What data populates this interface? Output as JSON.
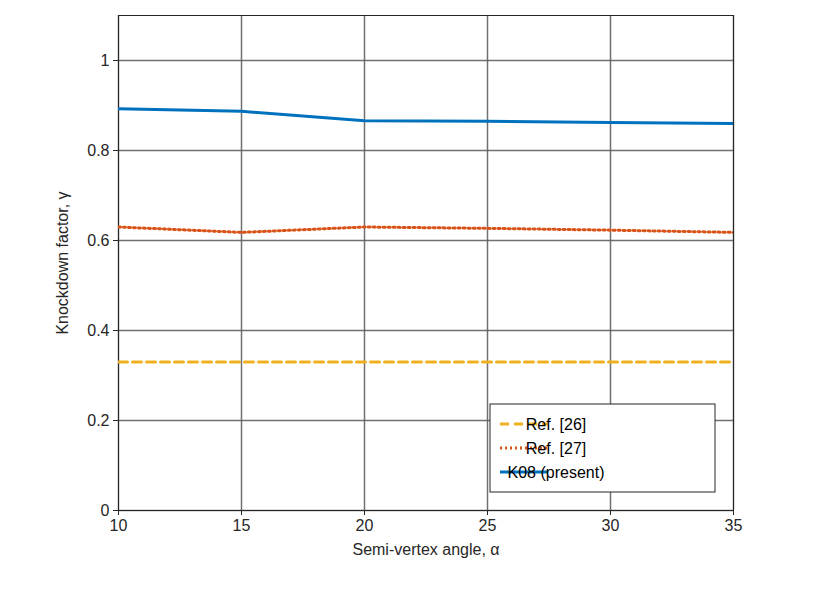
{
  "chart_data": {
    "type": "line",
    "x_label": "Semi-vertex angle, α",
    "y_label": "Knockdown factor, γ",
    "x": [
      10,
      15,
      20,
      25,
      30,
      35
    ],
    "xlim": [
      10,
      35
    ],
    "xticks": [
      10,
      15,
      20,
      25,
      30,
      35
    ],
    "ylim": [
      0,
      1.1
    ],
    "yticks": [
      0,
      0.2,
      0.4,
      0.6,
      0.8,
      1
    ],
    "grid": true,
    "legend": "lower right",
    "series": [
      {
        "name": "Ref. [26]",
        "color": "#EDB120",
        "line_style": "dashed",
        "values": [
          0.33,
          0.33,
          0.33,
          0.33,
          0.33,
          0.33
        ]
      },
      {
        "name": "Ref. [27]",
        "color": "#D95319",
        "line_style": "dotted",
        "values": [
          0.63,
          0.618,
          0.63,
          0.627,
          0.623,
          0.618
        ]
      },
      {
        "name": "K08 (present)",
        "color": "#0072BD",
        "line_style": "solid",
        "values": [
          0.893,
          0.887,
          0.866,
          0.865,
          0.862,
          0.86
        ]
      }
    ]
  }
}
